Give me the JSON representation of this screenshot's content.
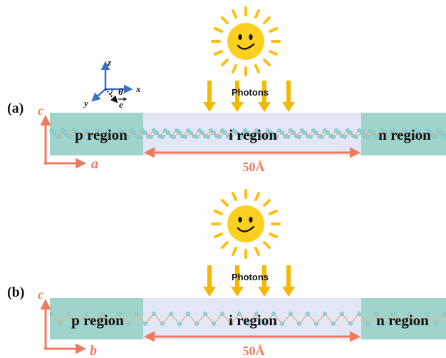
{
  "colors": {
    "region_teal": "#9fd3cb",
    "region_teal_edge": "#7cc3b8",
    "intrinsic_lavender": "#e3e6f5",
    "accent_salmon": "#f07a5e",
    "sun_yellow": "#fdd020",
    "sun_ray": "#fdbf0f",
    "arrow_yellow": "#f5b800",
    "axis_blue": "#3b6fc4",
    "atom_teal": "#8ed3d6",
    "bond_orange": "#e8b48a"
  },
  "panels": [
    {
      "label": "(a)",
      "photons_label": "Photons",
      "axis_vertical": "c",
      "axis_horizontal": "a",
      "left_region": "p region",
      "middle_region": "i region",
      "right_region": "n region",
      "width_label": "50Å",
      "coordinate_axes": {
        "x": "x",
        "y": "y",
        "z": "z",
        "theta": "θ",
        "e": "e"
      }
    },
    {
      "label": "(b)",
      "photons_label": "Photons",
      "axis_vertical": "c",
      "axis_horizontal": "b",
      "left_region": "p region",
      "middle_region": "i region",
      "right_region": "n region",
      "width_label": "50Å"
    }
  ],
  "icons": [
    "sun-icon",
    "smiley-face-icon",
    "photon-arrow-icon",
    "coordinate-axes-icon",
    "polarization-vector-icon"
  ]
}
